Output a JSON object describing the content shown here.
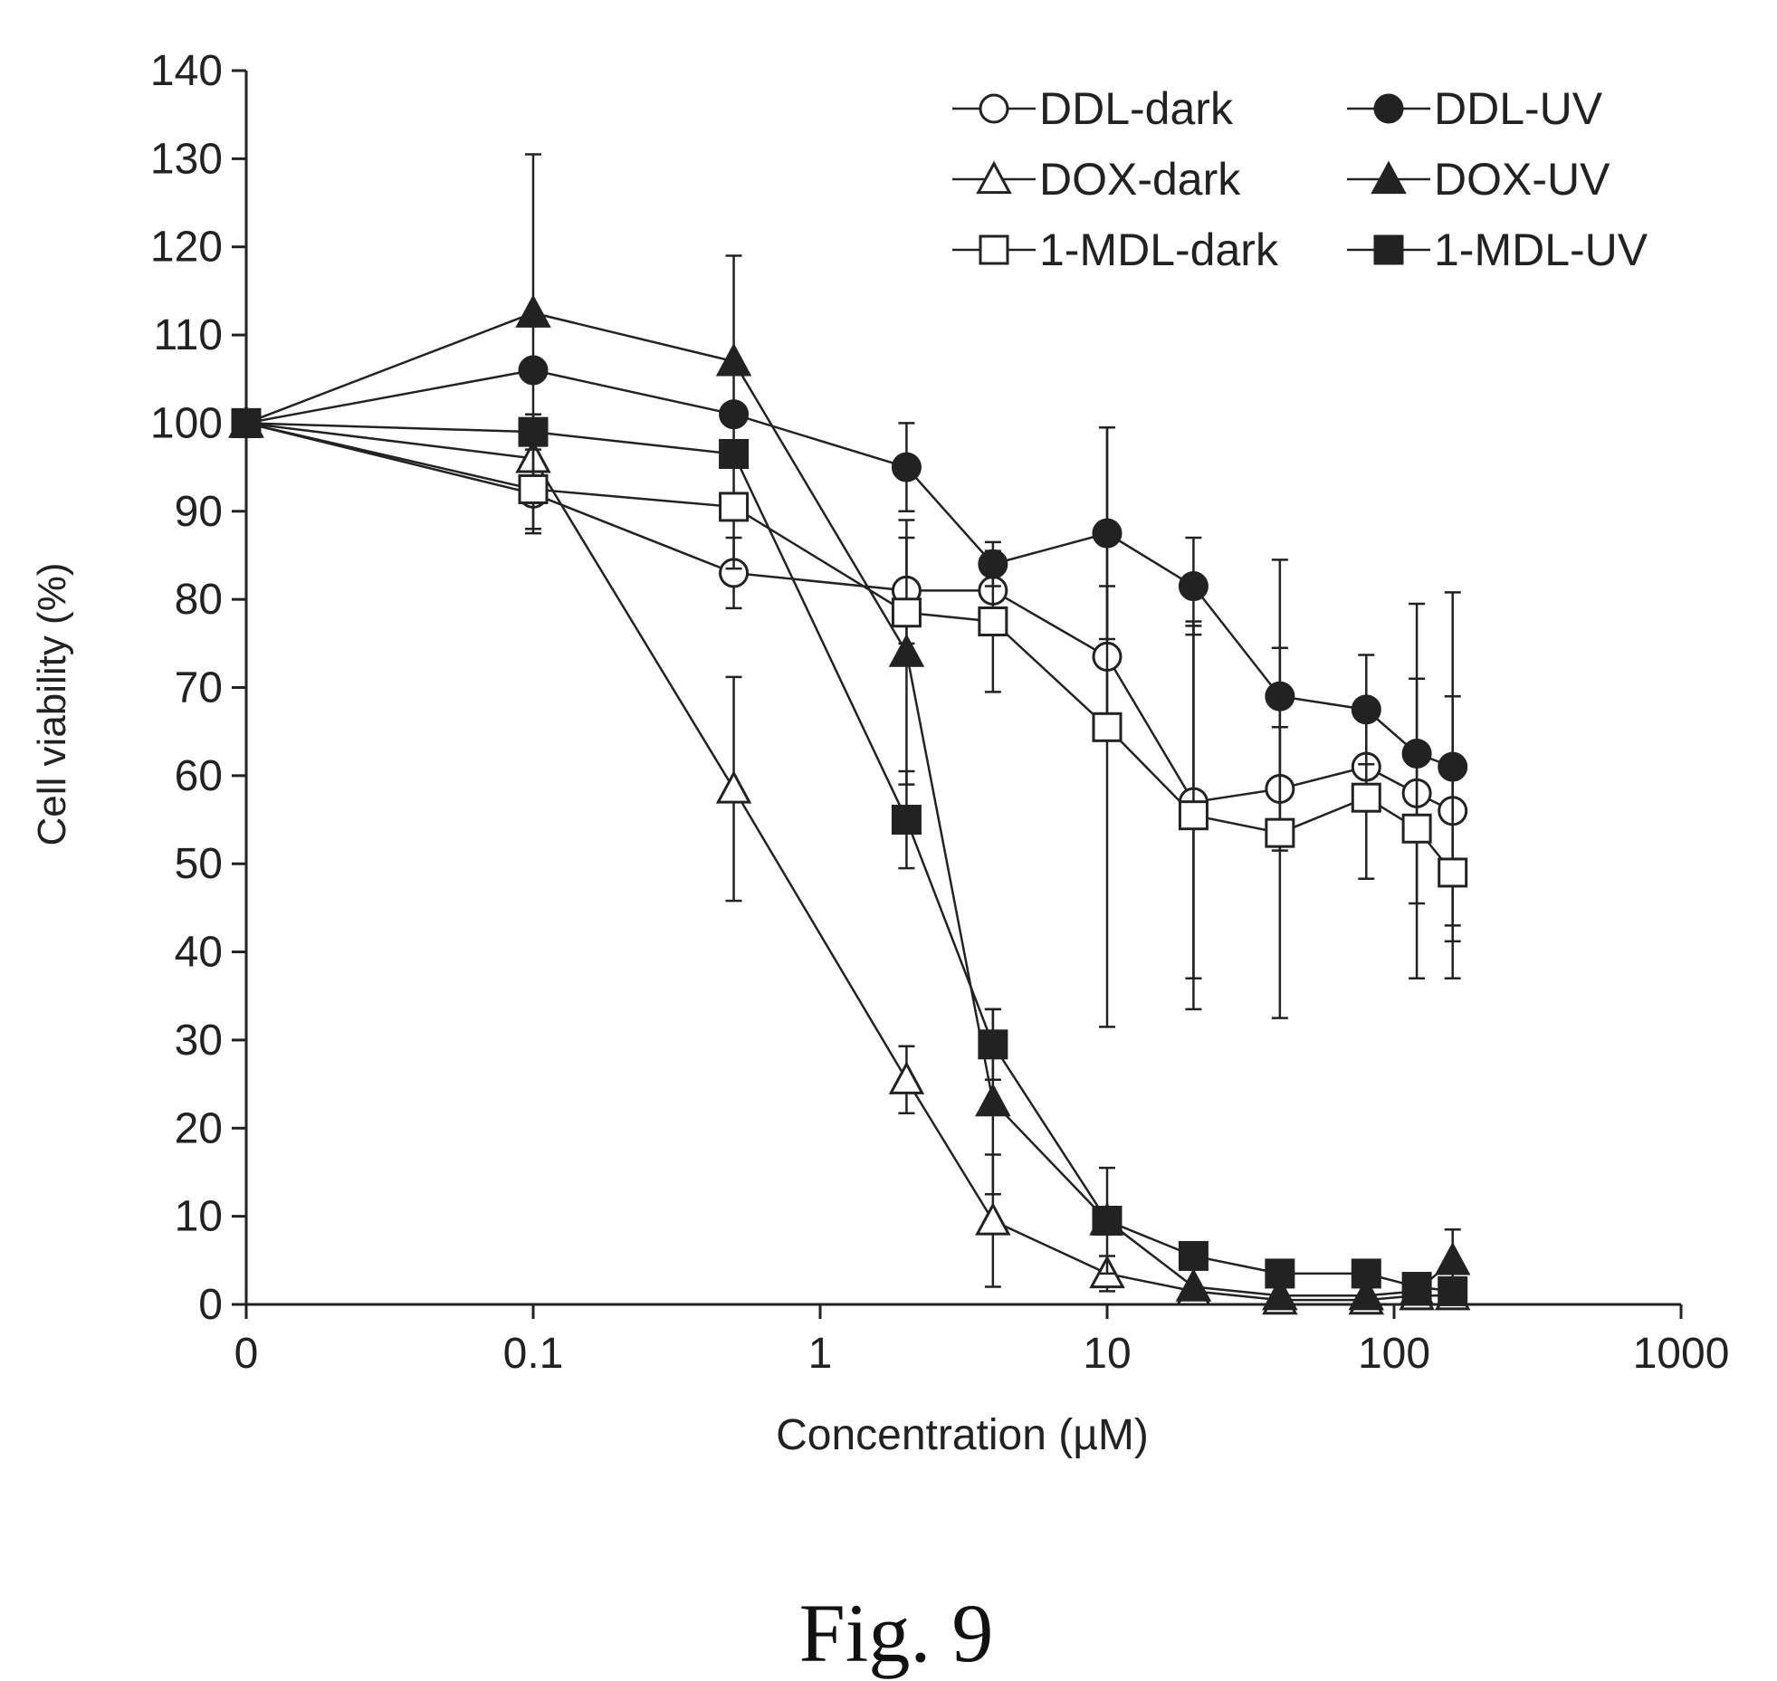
{
  "caption": "Fig. 9",
  "chart_data": {
    "type": "line",
    "xlabel": "Concentration (µM)",
    "ylabel": "Cell viability (%)",
    "x_scale": "log",
    "xlim": [
      0.01,
      1000
    ],
    "ylim": [
      0,
      140
    ],
    "x_tick_labels": [
      "0",
      "0.1",
      "1",
      "10",
      "100",
      "1000"
    ],
    "y_tick_labels": [
      "0",
      "10",
      "20",
      "30",
      "40",
      "50",
      "60",
      "70",
      "80",
      "90",
      "100",
      "110",
      "120",
      "130",
      "140"
    ],
    "grid": false,
    "legend_position": "top-right",
    "series": [
      {
        "name": "DDL-dark",
        "marker": "circle",
        "filled": false,
        "points": [
          [
            0,
            100
          ],
          [
            0.1,
            92
          ],
          [
            0.5,
            83
          ],
          [
            2,
            81
          ],
          [
            4,
            81
          ],
          [
            10,
            73.5
          ],
          [
            20,
            57
          ],
          [
            40,
            58.5
          ],
          [
            80,
            61
          ],
          [
            120,
            58
          ],
          [
            160,
            56
          ]
        ],
        "errors": [
          0,
          4,
          4,
          6,
          0,
          8,
          20,
          7,
          0,
          0,
          13
        ]
      },
      {
        "name": "DDL-UV",
        "marker": "circle",
        "filled": true,
        "points": [
          [
            0,
            100
          ],
          [
            0.1,
            106
          ],
          [
            0.5,
            101
          ],
          [
            2,
            95
          ],
          [
            4,
            84
          ],
          [
            10,
            87.5
          ],
          [
            20,
            81.5
          ],
          [
            40,
            69
          ],
          [
            80,
            67.5
          ],
          [
            120,
            62.5
          ],
          [
            160,
            61
          ]
        ],
        "errors": [
          0,
          0,
          0,
          5,
          2.5,
          12,
          5.5,
          15.5,
          6.2,
          17,
          19.8
        ]
      },
      {
        "name": "DOX-dark",
        "marker": "triangle",
        "filled": false,
        "points": [
          [
            0,
            100
          ],
          [
            0.1,
            96
          ],
          [
            0.5,
            58.5
          ],
          [
            2,
            25.5
          ],
          [
            4,
            9.5
          ],
          [
            10,
            3.5
          ],
          [
            20,
            1.5
          ],
          [
            40,
            0.5
          ],
          [
            80,
            0.5
          ],
          [
            120,
            1
          ],
          [
            160,
            1
          ]
        ],
        "errors": [
          0,
          0,
          12.7,
          3.8,
          7.5,
          2,
          0,
          0,
          0,
          0,
          0
        ]
      },
      {
        "name": "DOX-UV",
        "marker": "triangle",
        "filled": true,
        "points": [
          [
            0,
            100
          ],
          [
            0.1,
            112.5
          ],
          [
            0.5,
            107
          ],
          [
            2,
            74
          ],
          [
            4,
            23
          ],
          [
            10,
            9.5
          ],
          [
            20,
            2
          ],
          [
            40,
            1
          ],
          [
            80,
            1
          ],
          [
            120,
            1.5
          ],
          [
            160,
            5
          ]
        ],
        "errors": [
          0,
          18,
          12,
          15,
          10.5,
          0,
          0,
          0,
          0,
          0,
          3.5
        ]
      },
      {
        "name": "1-MDL-dark",
        "marker": "square",
        "filled": false,
        "points": [
          [
            0,
            100
          ],
          [
            0.1,
            92.5
          ],
          [
            0.5,
            90.5
          ],
          [
            2,
            78.5
          ],
          [
            4,
            77.5
          ],
          [
            10,
            65.5
          ],
          [
            20,
            55.5
          ],
          [
            40,
            53.5
          ],
          [
            80,
            57.5
          ],
          [
            120,
            54
          ],
          [
            160,
            49
          ]
        ],
        "errors": [
          0,
          5,
          7,
          0,
          8,
          34,
          22,
          21,
          9.2,
          17,
          12
        ]
      },
      {
        "name": "1-MDL-UV",
        "marker": "square",
        "filled": true,
        "points": [
          [
            0,
            100
          ],
          [
            0.1,
            99
          ],
          [
            0.5,
            96.5
          ],
          [
            2,
            55
          ],
          [
            4,
            29.5
          ],
          [
            10,
            9.5
          ],
          [
            20,
            5.5
          ],
          [
            40,
            3.5
          ],
          [
            80,
            3.5
          ],
          [
            120,
            2
          ],
          [
            160,
            1.5
          ]
        ],
        "errors": [
          0,
          2,
          0,
          5.5,
          4,
          6,
          0,
          0,
          0,
          0,
          0
        ]
      }
    ]
  }
}
